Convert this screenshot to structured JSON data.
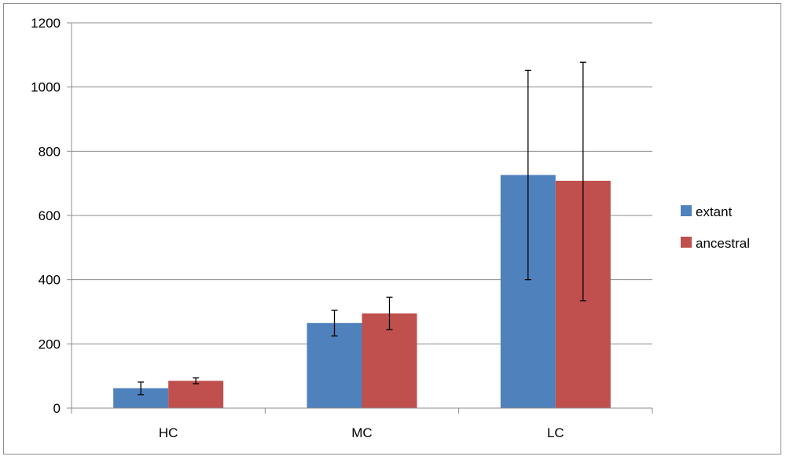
{
  "chart_data": {
    "type": "bar",
    "title": "",
    "xlabel": "",
    "ylabel": "",
    "categories": [
      "HC",
      "MC",
      "LC"
    ],
    "ylim": [
      0,
      1200
    ],
    "yticks": [
      0,
      200,
      400,
      600,
      800,
      1000,
      1200
    ],
    "grid": true,
    "legend_position": "right",
    "series": [
      {
        "name": "extant",
        "color": "#4F81BD",
        "values": [
          62,
          265,
          726
        ],
        "error_low": [
          42,
          225,
          400
        ],
        "error_high": [
          81,
          305,
          1052
        ]
      },
      {
        "name": "ancestral",
        "color": "#C0504D",
        "values": [
          85,
          295,
          708
        ],
        "error_low": [
          76,
          244,
          334
        ],
        "error_high": [
          94,
          345,
          1077
        ]
      }
    ]
  }
}
